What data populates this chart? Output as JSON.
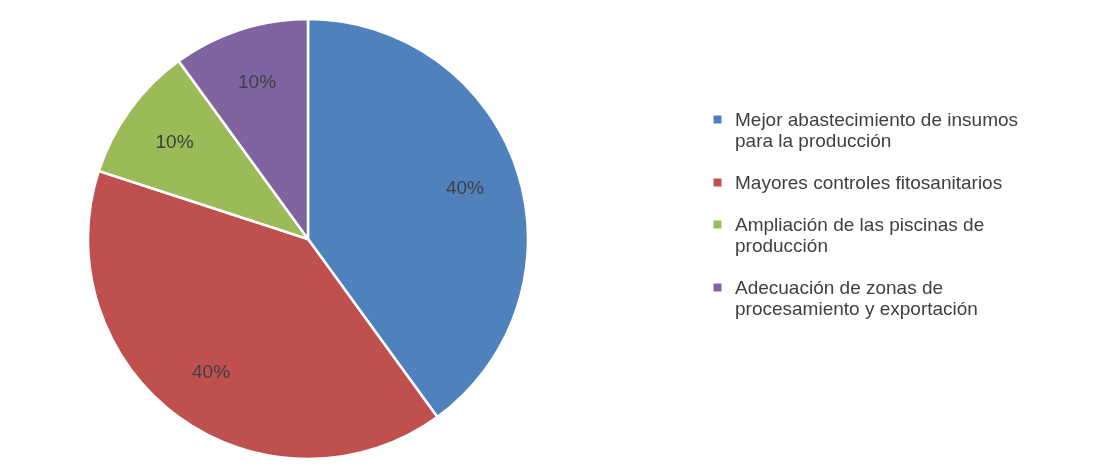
{
  "chart_data": {
    "type": "pie",
    "categories": [
      "Mejor abastecimiento de insumos para la producción",
      "Mayores controles fitosanitarios",
      "Ampliación de las piscinas de producción",
      "Adecuación de zonas de procesamiento y exportación"
    ],
    "values": [
      40,
      40,
      10,
      10
    ],
    "colors": [
      "#4f81bd",
      "#c0504d",
      "#9bbb59",
      "#8064a2"
    ],
    "value_labels": [
      "40%",
      "40%",
      "10%",
      "10%"
    ],
    "legend": "right"
  }
}
